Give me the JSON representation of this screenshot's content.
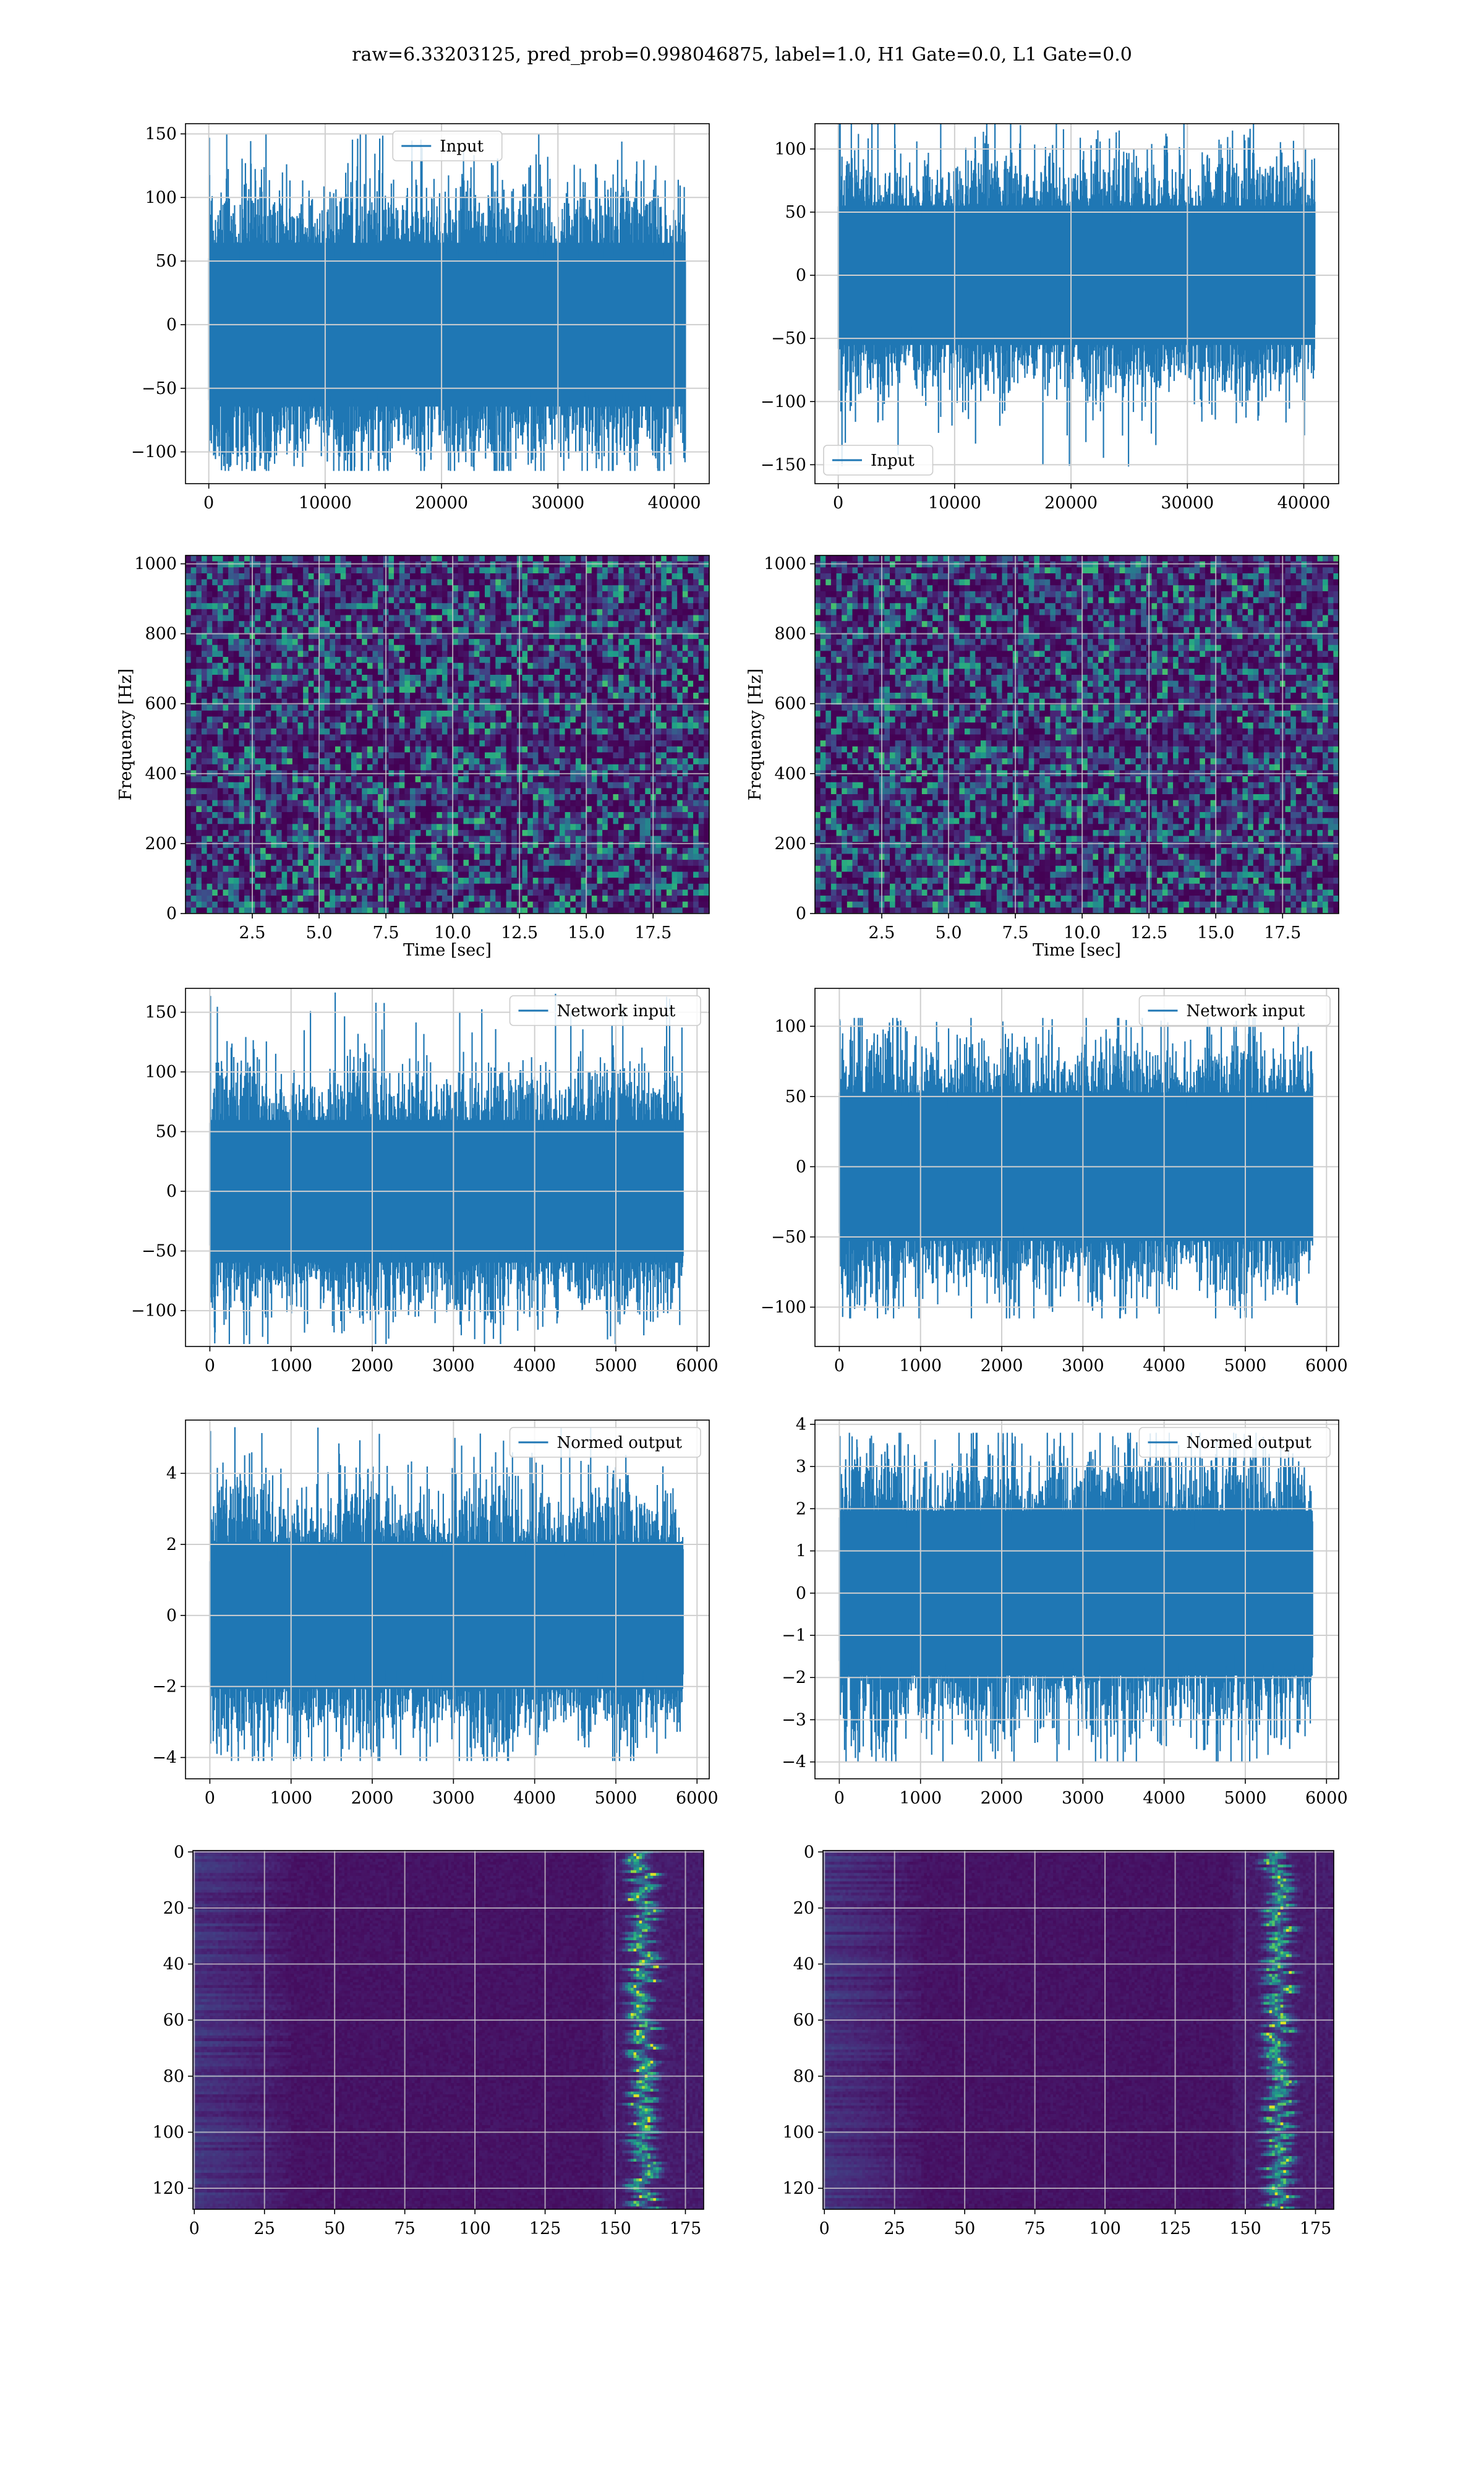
{
  "figure": {
    "suptitle": "raw=6.33203125, pred_prob=0.998046875, label=1.0, H1 Gate=0.0, L1 Gate=0.0"
  },
  "colors": {
    "series": "#1f77b4",
    "grid": "#cccccc",
    "viridis_low": "#440154",
    "viridis_high": "#fde725"
  },
  "chart_data": [
    {
      "id": "r1c1",
      "type": "line",
      "row": 1,
      "col": 1,
      "series": [
        {
          "name": "Input"
        }
      ],
      "legend": "top-center",
      "xlim": [
        -2000,
        43000
      ],
      "ylim": [
        -125,
        158
      ],
      "x_ticks": [
        0,
        10000,
        20000,
        30000,
        40000
      ],
      "y_ticks": [
        -100,
        -50,
        0,
        50,
        100,
        150
      ],
      "x_tick_labels": [
        "0",
        "10000",
        "20000",
        "30000",
        "40000"
      ],
      "y_tick_labels": [
        "−100",
        "−50",
        "0",
        "50",
        "100",
        "150"
      ],
      "signal": {
        "n": 40960,
        "std": 28,
        "max": 150,
        "min": -115
      },
      "grid": true
    },
    {
      "id": "r1c2",
      "type": "line",
      "row": 1,
      "col": 2,
      "series": [
        {
          "name": "Input"
        }
      ],
      "legend": "bottom-left",
      "xlim": [
        -2000,
        43000
      ],
      "ylim": [
        -165,
        120
      ],
      "x_ticks": [
        0,
        10000,
        20000,
        30000,
        40000
      ],
      "y_ticks": [
        -150,
        -100,
        -50,
        0,
        50,
        100
      ],
      "x_tick_labels": [
        "0",
        "10000",
        "20000",
        "30000",
        "40000"
      ],
      "y_tick_labels": [
        "−150",
        "−100",
        "−50",
        "0",
        "50",
        "100"
      ],
      "signal": {
        "n": 40960,
        "std": 24,
        "max": 127,
        "min": -152
      },
      "grid": true
    },
    {
      "id": "r2c1",
      "type": "heatmap",
      "row": 2,
      "col": 1,
      "xlabel": "Time [sec]",
      "ylabel": "Frequency [Hz]",
      "xlim": [
        0,
        19.6
      ],
      "ylim": [
        0,
        1024
      ],
      "x_ticks": [
        2.5,
        5.0,
        7.5,
        10.0,
        12.5,
        15.0,
        17.5
      ],
      "y_ticks": [
        0,
        200,
        400,
        600,
        800,
        1000
      ],
      "x_tick_labels": [
        "2.5",
        "5.0",
        "7.5",
        "10.0",
        "12.5",
        "15.0",
        "17.5"
      ],
      "y_tick_labels": [
        "0",
        "200",
        "400",
        "600",
        "800",
        "1000"
      ],
      "grid": true
    },
    {
      "id": "r2c2",
      "type": "heatmap",
      "row": 2,
      "col": 2,
      "xlabel": "Time [sec]",
      "ylabel": "Frequency [Hz]",
      "xlim": [
        0,
        19.6
      ],
      "ylim": [
        0,
        1024
      ],
      "x_ticks": [
        2.5,
        5.0,
        7.5,
        10.0,
        12.5,
        15.0,
        17.5
      ],
      "y_ticks": [
        0,
        200,
        400,
        600,
        800,
        1000
      ],
      "x_tick_labels": [
        "2.5",
        "5.0",
        "7.5",
        "10.0",
        "12.5",
        "15.0",
        "17.5"
      ],
      "y_tick_labels": [
        "0",
        "200",
        "400",
        "600",
        "800",
        "1000"
      ],
      "grid": true
    },
    {
      "id": "r3c1",
      "type": "line",
      "row": 3,
      "col": 1,
      "series": [
        {
          "name": "Network input"
        }
      ],
      "legend": "top-right",
      "xlim": [
        -300,
        6150
      ],
      "ylim": [
        -130,
        170
      ],
      "x_ticks": [
        0,
        1000,
        2000,
        3000,
        4000,
        5000,
        6000
      ],
      "y_ticks": [
        -100,
        -50,
        0,
        50,
        100,
        150
      ],
      "x_tick_labels": [
        "0",
        "1000",
        "2000",
        "3000",
        "4000",
        "5000",
        "6000"
      ],
      "y_tick_labels": [
        "−100",
        "−50",
        "0",
        "50",
        "100",
        "150"
      ],
      "signal": {
        "n": 5830,
        "std": 26,
        "max": 167,
        "min": -128
      },
      "grid": true
    },
    {
      "id": "r3c2",
      "type": "line",
      "row": 3,
      "col": 2,
      "series": [
        {
          "name": "Network input"
        }
      ],
      "legend": "top-right",
      "xlim": [
        -300,
        6150
      ],
      "ylim": [
        -128,
        127
      ],
      "x_ticks": [
        0,
        1000,
        2000,
        3000,
        4000,
        5000,
        6000
      ],
      "y_ticks": [
        -100,
        -50,
        0,
        50,
        100
      ],
      "x_tick_labels": [
        "0",
        "1000",
        "2000",
        "3000",
        "4000",
        "5000",
        "6000"
      ],
      "y_tick_labels": [
        "−100",
        "−50",
        "0",
        "50",
        "100"
      ],
      "signal": {
        "n": 5830,
        "std": 23,
        "max": 106,
        "min": -108
      },
      "grid": true
    },
    {
      "id": "r4c1",
      "type": "line",
      "row": 4,
      "col": 1,
      "series": [
        {
          "name": "Normed output"
        }
      ],
      "legend": "top-right",
      "xlim": [
        -300,
        6150
      ],
      "ylim": [
        -4.6,
        5.5
      ],
      "x_ticks": [
        0,
        1000,
        2000,
        3000,
        4000,
        5000,
        6000
      ],
      "y_ticks": [
        -4,
        -2,
        0,
        2,
        4
      ],
      "x_tick_labels": [
        "0",
        "1000",
        "2000",
        "3000",
        "4000",
        "5000",
        "6000"
      ],
      "y_tick_labels": [
        "−4",
        "−2",
        "0",
        "2",
        "4"
      ],
      "signal": {
        "n": 5830,
        "std": 0.9,
        "max": 5.3,
        "min": -4.1
      },
      "grid": true
    },
    {
      "id": "r4c2",
      "type": "line",
      "row": 4,
      "col": 2,
      "series": [
        {
          "name": "Normed output"
        }
      ],
      "legend": "top-right",
      "xlim": [
        -300,
        6150
      ],
      "ylim": [
        -4.4,
        4.1
      ],
      "x_ticks": [
        0,
        1000,
        2000,
        3000,
        4000,
        5000,
        6000
      ],
      "y_ticks": [
        -4,
        -3,
        -2,
        -1,
        0,
        1,
        2,
        3,
        4
      ],
      "x_tick_labels": [
        "0",
        "1000",
        "2000",
        "3000",
        "4000",
        "5000",
        "6000"
      ],
      "y_tick_labels": [
        "−4",
        "−3",
        "−2",
        "−1",
        "0",
        "1",
        "2",
        "3",
        "4"
      ],
      "signal": {
        "n": 5830,
        "std": 0.85,
        "max": 3.8,
        "min": -4.0
      },
      "grid": true
    },
    {
      "id": "r5c1",
      "type": "heatmap",
      "row": 5,
      "col": 1,
      "xlim": [
        -0.5,
        181.5
      ],
      "ylim": [
        127.5,
        -0.5
      ],
      "x_ticks": [
        0,
        25,
        50,
        75,
        100,
        125,
        150,
        175
      ],
      "y_ticks": [
        0,
        20,
        40,
        60,
        80,
        100,
        120
      ],
      "x_tick_labels": [
        "0",
        "25",
        "50",
        "75",
        "100",
        "125",
        "150",
        "175"
      ],
      "y_tick_labels": [
        "0",
        "20",
        "40",
        "60",
        "80",
        "100",
        "120"
      ],
      "feature_band": {
        "center_x": 160
      },
      "grid": true
    },
    {
      "id": "r5c2",
      "type": "heatmap",
      "row": 5,
      "col": 2,
      "xlim": [
        -0.5,
        181.5
      ],
      "ylim": [
        127.5,
        -0.5
      ],
      "x_ticks": [
        0,
        25,
        50,
        75,
        100,
        125,
        150,
        175
      ],
      "y_ticks": [
        0,
        20,
        40,
        60,
        80,
        100,
        120
      ],
      "x_tick_labels": [
        "0",
        "25",
        "50",
        "75",
        "100",
        "125",
        "150",
        "175"
      ],
      "y_tick_labels": [
        "0",
        "20",
        "40",
        "60",
        "80",
        "100",
        "120"
      ],
      "feature_band": {
        "center_x": 162
      },
      "grid": true
    }
  ]
}
